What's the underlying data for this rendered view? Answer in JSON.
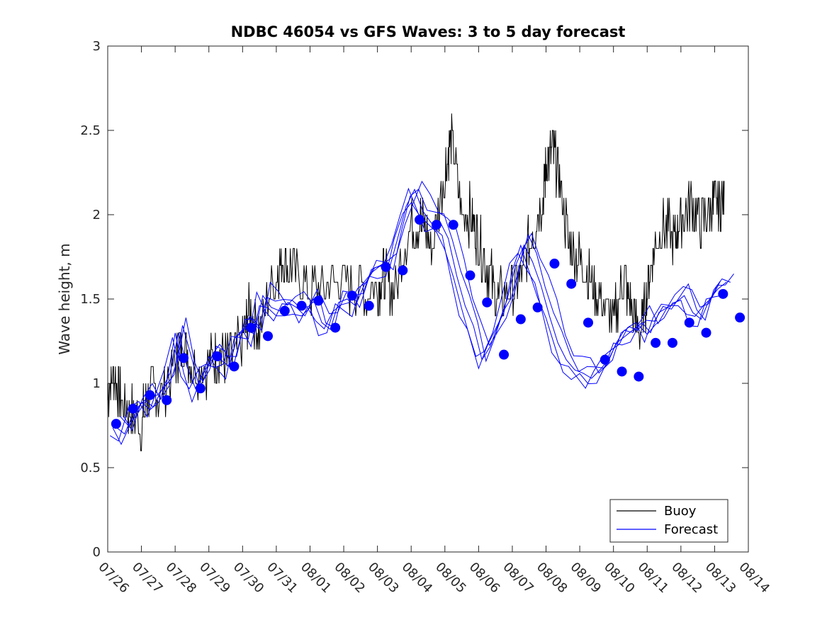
{
  "chart_data": {
    "type": "line",
    "title": "NDBC 46054 vs GFS Waves: 3 to 5 day forecast",
    "xlabel": "",
    "ylabel": "Wave height, m",
    "xlim": [
      0,
      19
    ],
    "ylim": [
      0,
      3
    ],
    "x_tick_labels": [
      "07/26",
      "07/27",
      "07/28",
      "07/29",
      "07/30",
      "07/31",
      "08/01",
      "08/02",
      "08/03",
      "08/04",
      "08/05",
      "08/06",
      "08/07",
      "08/08",
      "08/09",
      "08/10",
      "08/11",
      "08/12",
      "08/13",
      "08/14"
    ],
    "y_tick_labels": [
      "0",
      "0.5",
      "1",
      "1.5",
      "2",
      "2.5",
      "3"
    ],
    "y_ticks": [
      0,
      0.5,
      1,
      1.5,
      2,
      2.5,
      3
    ],
    "x_unit": "days since 07/26 00:00",
    "legend": {
      "placement": "bottom-right",
      "entries": [
        {
          "label": "Buoy",
          "color": "#000000"
        },
        {
          "label": "Forecast",
          "color": "#0000ff"
        }
      ]
    },
    "grid": false,
    "series": [
      {
        "name": "Buoy",
        "color": "#000000",
        "style": "noisy-line",
        "points": [
          [
            0,
            0.95
          ],
          [
            0.2,
            1.05
          ],
          [
            0.4,
            0.9
          ],
          [
            0.7,
            0.82
          ],
          [
            1.0,
            0.75
          ],
          [
            1.2,
            0.95
          ],
          [
            1.5,
            0.93
          ],
          [
            2.0,
            1.1
          ],
          [
            2.2,
            1.25
          ],
          [
            2.5,
            1.1
          ],
          [
            3.0,
            1.1
          ],
          [
            3.3,
            1.2
          ],
          [
            3.6,
            1.12
          ],
          [
            4.0,
            1.25
          ],
          [
            4.2,
            1.45
          ],
          [
            4.5,
            1.3
          ],
          [
            5.0,
            1.65
          ],
          [
            5.2,
            1.75
          ],
          [
            5.5,
            1.65
          ],
          [
            6.0,
            1.55
          ],
          [
            6.5,
            1.6
          ],
          [
            7.0,
            1.6
          ],
          [
            7.5,
            1.55
          ],
          [
            8.0,
            1.55
          ],
          [
            8.2,
            1.65
          ],
          [
            8.5,
            1.55
          ],
          [
            9.0,
            1.95
          ],
          [
            9.3,
            1.95
          ],
          [
            9.6,
            1.8
          ],
          [
            10.0,
            2.25
          ],
          [
            10.2,
            2.45
          ],
          [
            10.5,
            2.0
          ],
          [
            10.8,
            2.0
          ],
          [
            11.0,
            1.85
          ],
          [
            11.3,
            1.65
          ],
          [
            11.6,
            1.5
          ],
          [
            12.0,
            1.55
          ],
          [
            12.3,
            1.65
          ],
          [
            12.6,
            1.9
          ],
          [
            12.9,
            2.1
          ],
          [
            13.0,
            2.3
          ],
          [
            13.2,
            2.4
          ],
          [
            13.4,
            2.2
          ],
          [
            13.7,
            1.8
          ],
          [
            14.0,
            1.75
          ],
          [
            14.3,
            1.6
          ],
          [
            14.6,
            1.5
          ],
          [
            15.0,
            1.35
          ],
          [
            15.3,
            1.65
          ],
          [
            15.5,
            1.45
          ],
          [
            15.8,
            1.3
          ],
          [
            16.0,
            1.55
          ],
          [
            16.2,
            1.8
          ],
          [
            16.5,
            1.95
          ],
          [
            16.8,
            1.85
          ],
          [
            17.0,
            2.0
          ],
          [
            17.3,
            2.05
          ],
          [
            17.6,
            1.95
          ],
          [
            17.9,
            2.05
          ],
          [
            18.1,
            2.05
          ],
          [
            18.3,
            2.1
          ]
        ],
        "jitter_seed": 7
      },
      {
        "name": "Forecast",
        "color": "#0000ff",
        "style": "line",
        "points": [
          [
            0.25,
            0.74
          ],
          [
            0.5,
            0.7
          ],
          [
            0.8,
            0.84
          ],
          [
            1.1,
            0.9
          ],
          [
            1.35,
            0.86
          ],
          [
            1.6,
            0.96
          ],
          [
            1.85,
            1.06
          ],
          [
            2.1,
            1.3
          ],
          [
            2.35,
            1.1
          ],
          [
            2.6,
            0.97
          ],
          [
            2.9,
            1.08
          ],
          [
            3.1,
            1.16
          ],
          [
            3.35,
            1.14
          ],
          [
            3.6,
            1.1
          ],
          [
            3.85,
            1.28
          ],
          [
            4.1,
            1.33
          ],
          [
            4.35,
            1.29
          ],
          [
            4.6,
            1.52
          ],
          [
            4.85,
            1.45
          ],
          [
            5.1,
            1.43
          ],
          [
            5.35,
            1.48
          ],
          [
            5.6,
            1.45
          ],
          [
            5.85,
            1.4
          ],
          [
            6.1,
            1.5
          ],
          [
            6.35,
            1.36
          ],
          [
            6.6,
            1.32
          ],
          [
            6.85,
            1.48
          ],
          [
            7.1,
            1.5
          ],
          [
            7.35,
            1.46
          ],
          [
            7.6,
            1.58
          ],
          [
            7.85,
            1.66
          ],
          [
            8.1,
            1.7
          ],
          [
            8.35,
            1.68
          ],
          [
            8.6,
            1.86
          ],
          [
            8.85,
            2.05
          ],
          [
            9.1,
            2.15
          ],
          [
            9.35,
            2.02
          ],
          [
            9.6,
            1.95
          ],
          [
            9.85,
            1.96
          ],
          [
            10.1,
            1.86
          ],
          [
            10.35,
            1.64
          ],
          [
            10.6,
            1.46
          ],
          [
            10.85,
            1.34
          ],
          [
            11.1,
            1.14
          ],
          [
            11.35,
            1.22
          ],
          [
            11.6,
            1.36
          ],
          [
            11.85,
            1.5
          ],
          [
            12.1,
            1.7
          ],
          [
            12.35,
            1.82
          ],
          [
            12.6,
            1.72
          ],
          [
            12.85,
            1.58
          ],
          [
            13.1,
            1.4
          ],
          [
            13.35,
            1.24
          ],
          [
            13.6,
            1.14
          ],
          [
            13.85,
            1.08
          ],
          [
            14.1,
            1.06
          ],
          [
            14.35,
            1.03
          ],
          [
            14.6,
            1.08
          ],
          [
            14.85,
            1.14
          ],
          [
            15.1,
            1.24
          ],
          [
            15.35,
            1.28
          ],
          [
            15.6,
            1.32
          ],
          [
            15.85,
            1.36
          ],
          [
            16.1,
            1.3
          ],
          [
            16.35,
            1.42
          ],
          [
            16.6,
            1.45
          ],
          [
            16.85,
            1.48
          ],
          [
            17.1,
            1.52
          ],
          [
            17.35,
            1.42
          ],
          [
            17.6,
            1.38
          ],
          [
            17.85,
            1.5
          ],
          [
            18.1,
            1.56
          ],
          [
            18.35,
            1.6
          ]
        ],
        "extra_runs": [
          {
            "offset_x": 0.12,
            "offset_y": 0.03
          },
          {
            "offset_x": -0.1,
            "offset_y": -0.04
          },
          {
            "offset_x": 0.22,
            "offset_y": 0.06
          },
          {
            "offset_x": -0.18,
            "offset_y": -0.02
          }
        ]
      },
      {
        "name": "Forecast verification points",
        "color": "#0000ff",
        "style": "markers",
        "points": [
          [
            0.0,
            0.76
          ],
          [
            0.5,
            0.85
          ],
          [
            1.0,
            0.93
          ],
          [
            1.5,
            0.9
          ],
          [
            2.0,
            1.15
          ],
          [
            2.5,
            0.97
          ],
          [
            3.0,
            1.16
          ],
          [
            3.5,
            1.1
          ],
          [
            4.0,
            1.33
          ],
          [
            4.5,
            1.28
          ],
          [
            5.0,
            1.43
          ],
          [
            5.5,
            1.46
          ],
          [
            6.0,
            1.49
          ],
          [
            6.5,
            1.33
          ],
          [
            7.0,
            1.52
          ],
          [
            7.5,
            1.46
          ],
          [
            8.0,
            1.69
          ],
          [
            8.5,
            1.67
          ],
          [
            9.0,
            1.97
          ],
          [
            9.5,
            1.94
          ],
          [
            10.0,
            1.94
          ],
          [
            10.5,
            1.64
          ],
          [
            11.0,
            1.48
          ],
          [
            11.5,
            1.17
          ],
          [
            12.0,
            1.38
          ],
          [
            12.5,
            1.45
          ],
          [
            13.0,
            1.71
          ],
          [
            13.5,
            1.59
          ],
          [
            14.0,
            1.36
          ],
          [
            14.5,
            1.14
          ],
          [
            15.0,
            1.07
          ],
          [
            15.5,
            1.04
          ],
          [
            16.0,
            1.24
          ],
          [
            16.5,
            1.24
          ],
          [
            17.0,
            1.36
          ],
          [
            17.5,
            1.3
          ],
          [
            18.0,
            1.53
          ],
          [
            18.5,
            1.39
          ]
        ]
      }
    ]
  }
}
